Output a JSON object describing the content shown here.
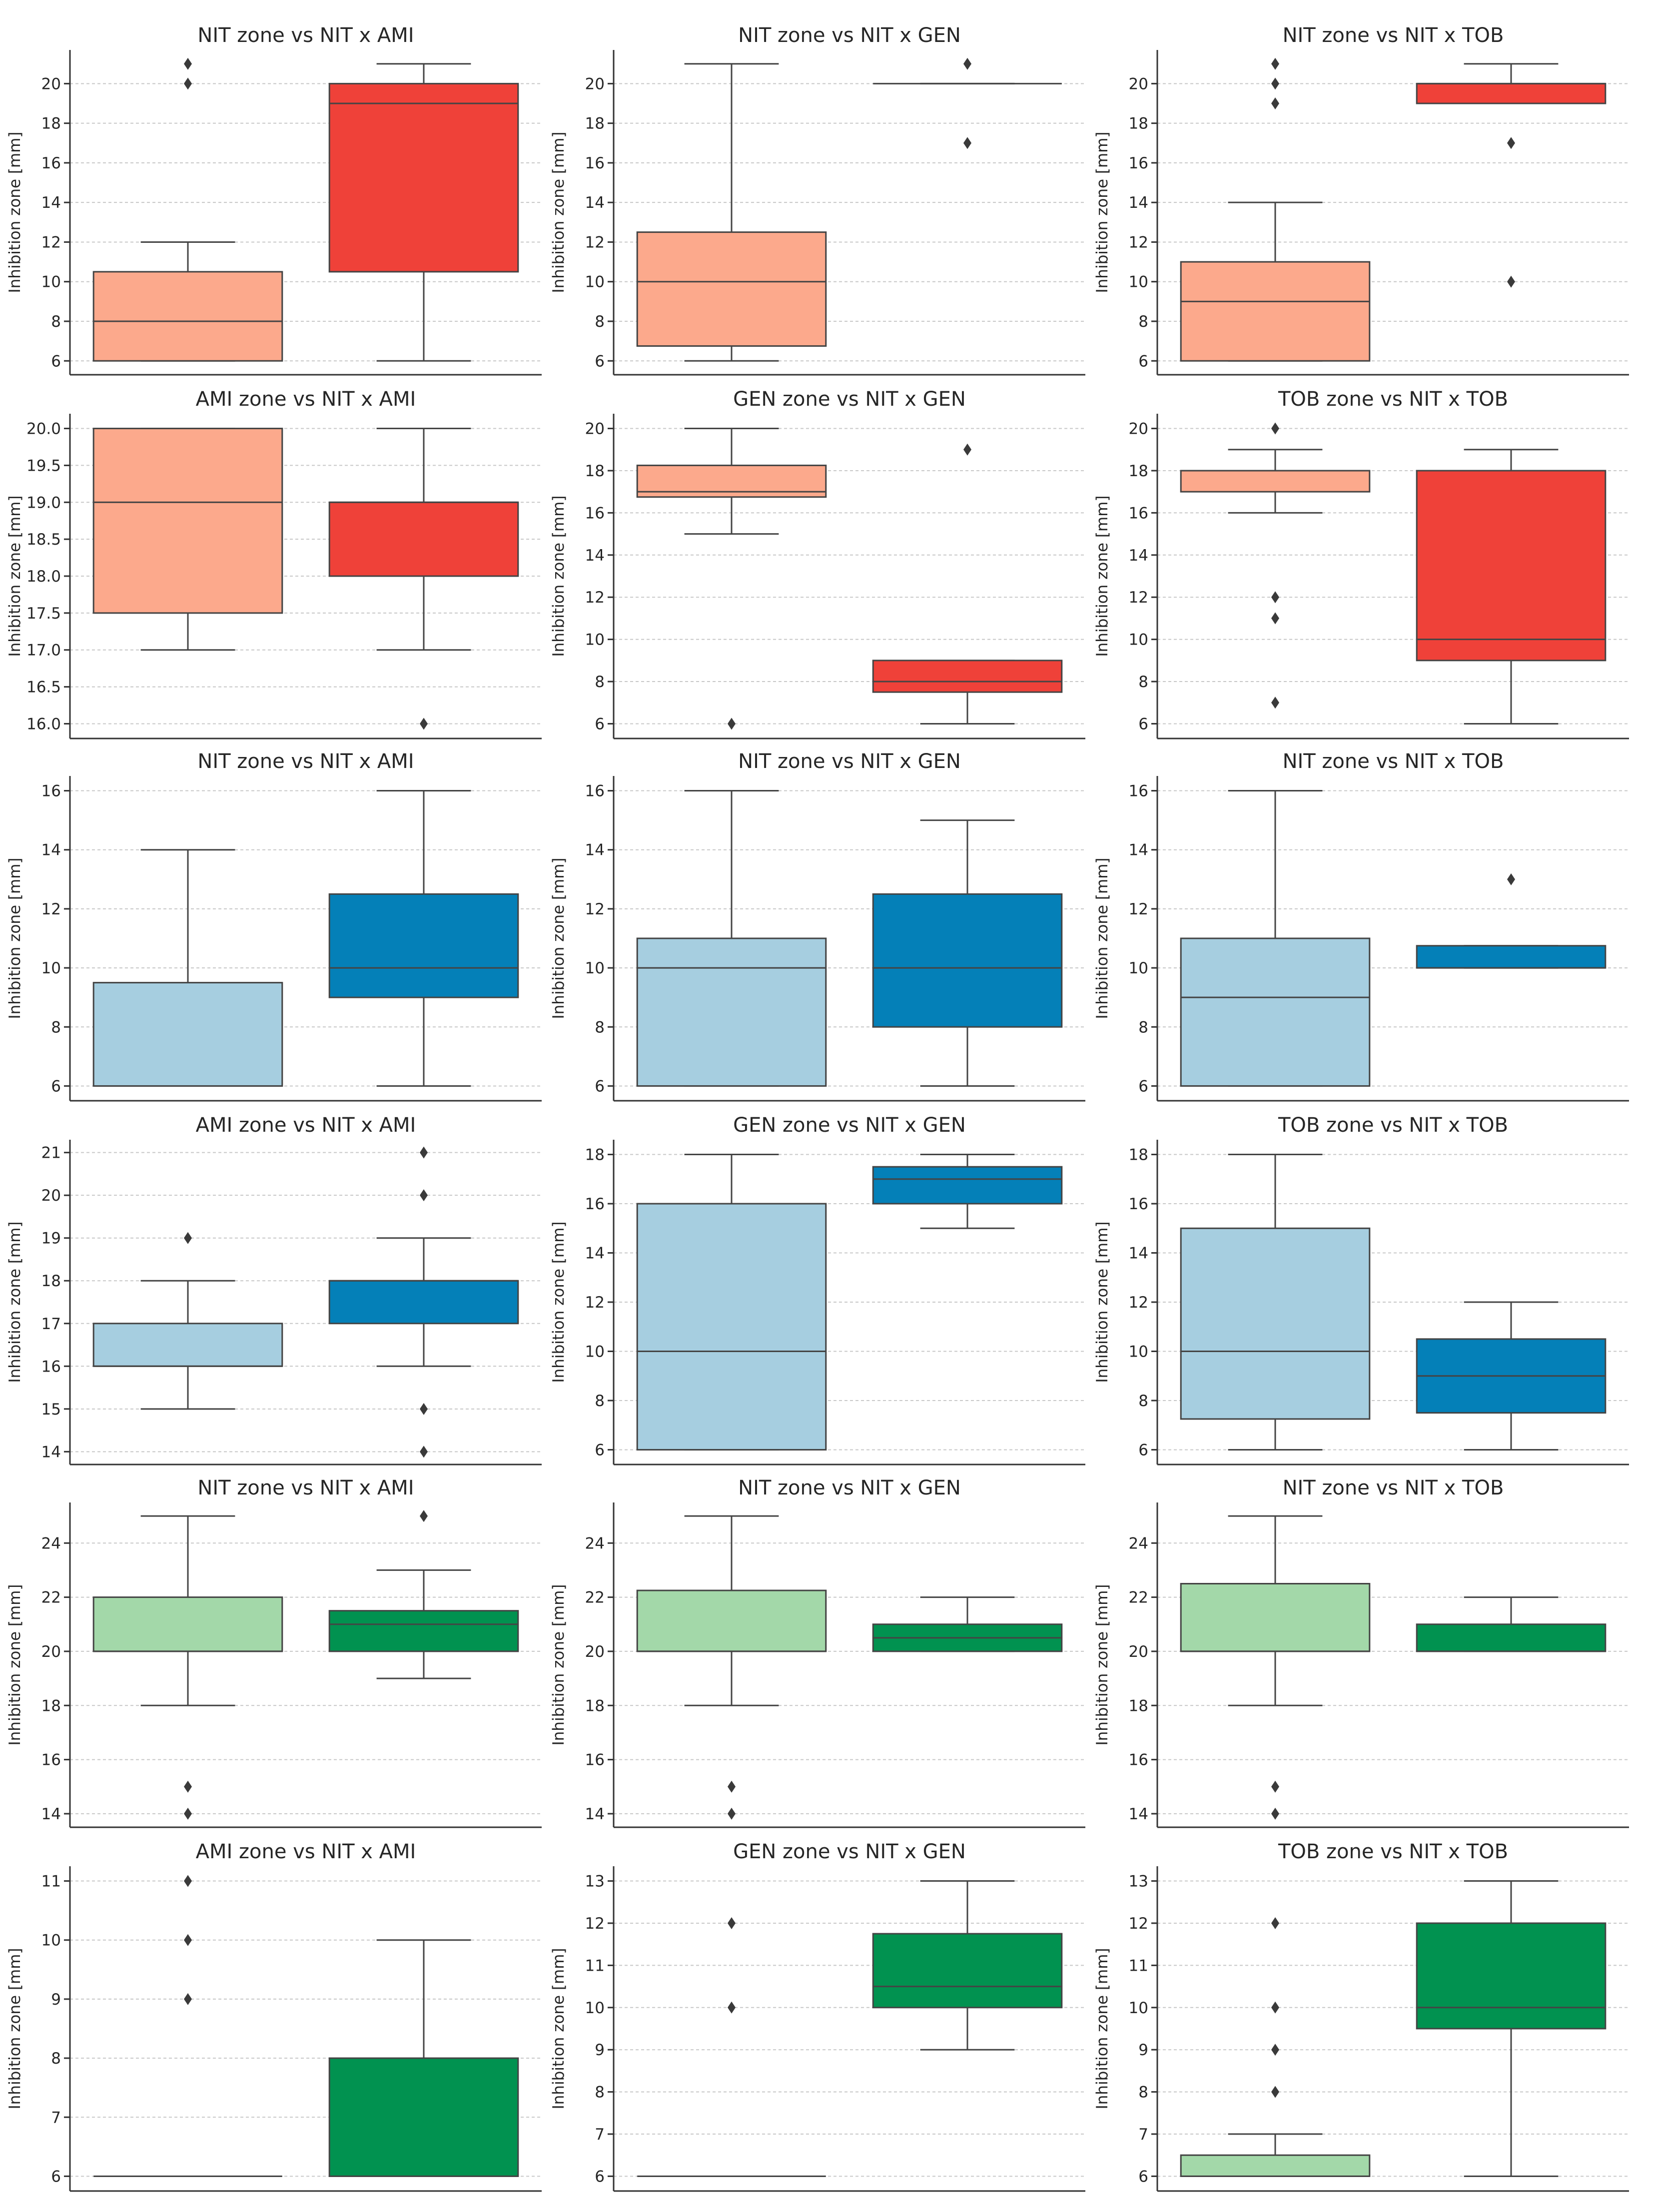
{
  "chart_data": [
    {
      "type": "box",
      "title": "NIT zone vs NIT x AMI",
      "ylabel": "Inhibition zone [mm]",
      "ylim": [
        5.3,
        21.7
      ],
      "ticks": [
        6,
        8,
        10,
        12,
        14,
        16,
        18,
        20
      ],
      "color_single": "#fca98c",
      "color_combo": "#ef4139",
      "boxes": [
        {
          "name": "single",
          "q1": 6,
          "median": 8,
          "q3": 10.5,
          "whislo": 6,
          "whishi": 12,
          "fliers": [
            20,
            21
          ]
        },
        {
          "name": "combo",
          "q1": 10.5,
          "median": 19,
          "q3": 20,
          "whislo": 6,
          "whishi": 21,
          "fliers": []
        }
      ]
    },
    {
      "type": "box",
      "title": "NIT zone vs NIT x GEN",
      "ylabel": "Inhibition zone [mm]",
      "ylim": [
        5.3,
        21.7
      ],
      "ticks": [
        6,
        8,
        10,
        12,
        14,
        16,
        18,
        20
      ],
      "color_single": "#fca98c",
      "color_combo": "#ef4139",
      "boxes": [
        {
          "name": "single",
          "q1": 6.75,
          "median": 10,
          "q3": 12.5,
          "whislo": 6,
          "whishi": 21,
          "fliers": []
        },
        {
          "name": "combo",
          "q1": 20,
          "median": 20,
          "q3": 20,
          "whislo": 20,
          "whishi": 20,
          "fliers": [
            17,
            21
          ]
        }
      ]
    },
    {
      "type": "box",
      "title": "NIT zone vs NIT x TOB",
      "ylabel": "Inhibition zone [mm]",
      "ylim": [
        5.3,
        21.7
      ],
      "ticks": [
        6,
        8,
        10,
        12,
        14,
        16,
        18,
        20
      ],
      "color_single": "#fca98c",
      "color_combo": "#ef4139",
      "boxes": [
        {
          "name": "single",
          "q1": 6,
          "median": 9,
          "q3": 11,
          "whislo": 6,
          "whishi": 14,
          "fliers": [
            19,
            20,
            21
          ]
        },
        {
          "name": "combo",
          "q1": 19,
          "median": 20,
          "q3": 20,
          "whislo": 19,
          "whishi": 21,
          "fliers": [
            10,
            17
          ]
        }
      ]
    },
    {
      "type": "box",
      "title": "AMI zone vs NIT x AMI",
      "ylabel": "Inhibition zone [mm]",
      "ylim": [
        15.8,
        20.2
      ],
      "ticks": [
        16.0,
        16.5,
        17.0,
        17.5,
        18.0,
        18.5,
        19.0,
        19.5,
        20.0
      ],
      "tick_format": "1dp",
      "color_single": "#fca98c",
      "color_combo": "#ef4139",
      "boxes": [
        {
          "name": "single",
          "q1": 17.5,
          "median": 19,
          "q3": 20,
          "whislo": 17,
          "whishi": 20,
          "fliers": []
        },
        {
          "name": "combo",
          "q1": 18,
          "median": 19,
          "q3": 19,
          "whislo": 17,
          "whishi": 20,
          "fliers": [
            16
          ]
        }
      ]
    },
    {
      "type": "box",
      "title": "GEN zone vs NIT x GEN",
      "ylabel": "Inhibition zone [mm]",
      "ylim": [
        5.3,
        20.7
      ],
      "ticks": [
        6,
        8,
        10,
        12,
        14,
        16,
        18,
        20
      ],
      "color_single": "#fca98c",
      "color_combo": "#ef4139",
      "boxes": [
        {
          "name": "single",
          "q1": 16.75,
          "median": 17,
          "q3": 18.25,
          "whislo": 15,
          "whishi": 20,
          "fliers": [
            6
          ]
        },
        {
          "name": "combo",
          "q1": 7.5,
          "median": 8,
          "q3": 9,
          "whislo": 6,
          "whishi": 9,
          "fliers": [
            19
          ]
        }
      ]
    },
    {
      "type": "box",
      "title": "TOB zone vs NIT x TOB",
      "ylabel": "Inhibition zone [mm]",
      "ylim": [
        5.3,
        20.7
      ],
      "ticks": [
        6,
        8,
        10,
        12,
        14,
        16,
        18,
        20
      ],
      "color_single": "#fca98c",
      "color_combo": "#ef4139",
      "boxes": [
        {
          "name": "single",
          "q1": 17,
          "median": 18,
          "q3": 18,
          "whislo": 16,
          "whishi": 19,
          "fliers": [
            7,
            11,
            12,
            20
          ]
        },
        {
          "name": "combo",
          "q1": 9,
          "median": 10,
          "q3": 18,
          "whislo": 6,
          "whishi": 19,
          "fliers": []
        }
      ]
    },
    {
      "type": "box",
      "title": "NIT zone vs NIT x AMI",
      "ylabel": "Inhibition zone [mm]",
      "ylim": [
        5.5,
        16.5
      ],
      "ticks": [
        6,
        8,
        10,
        12,
        14,
        16
      ],
      "color_single": "#a6cee0",
      "color_combo": "#0480b8",
      "boxes": [
        {
          "name": "single",
          "q1": 6,
          "median": 6,
          "q3": 9.5,
          "whislo": 6,
          "whishi": 14,
          "fliers": []
        },
        {
          "name": "combo",
          "q1": 9,
          "median": 10,
          "q3": 12.5,
          "whislo": 6,
          "whishi": 16,
          "fliers": []
        }
      ]
    },
    {
      "type": "box",
      "title": "NIT zone vs NIT x GEN",
      "ylabel": "Inhibition zone [mm]",
      "ylim": [
        5.5,
        16.5
      ],
      "ticks": [
        6,
        8,
        10,
        12,
        14,
        16
      ],
      "color_single": "#a6cee0",
      "color_combo": "#0480b8",
      "boxes": [
        {
          "name": "single",
          "q1": 6,
          "median": 10,
          "q3": 11,
          "whislo": 6,
          "whishi": 16,
          "fliers": []
        },
        {
          "name": "combo",
          "q1": 8,
          "median": 10,
          "q3": 12.5,
          "whislo": 6,
          "whishi": 15,
          "fliers": []
        }
      ]
    },
    {
      "type": "box",
      "title": "NIT zone vs NIT x TOB",
      "ylabel": "Inhibition zone [mm]",
      "ylim": [
        5.5,
        16.5
      ],
      "ticks": [
        6,
        8,
        10,
        12,
        14,
        16
      ],
      "color_single": "#a6cee0",
      "color_combo": "#0480b8",
      "boxes": [
        {
          "name": "single",
          "q1": 6,
          "median": 9,
          "q3": 11,
          "whislo": 6,
          "whishi": 16,
          "fliers": []
        },
        {
          "name": "combo",
          "q1": 10,
          "median": 10,
          "q3": 10.75,
          "whislo": 10,
          "whishi": 10.75,
          "fliers": [
            13
          ]
        }
      ]
    },
    {
      "type": "box",
      "title": "AMI zone vs NIT x AMI",
      "ylabel": "Inhibition zone [mm]",
      "ylim": [
        13.7,
        21.3
      ],
      "ticks": [
        14,
        15,
        16,
        17,
        18,
        19,
        20,
        21
      ],
      "color_single": "#a6cee0",
      "color_combo": "#0480b8",
      "boxes": [
        {
          "name": "single",
          "q1": 16,
          "median": 16,
          "q3": 17,
          "whislo": 15,
          "whishi": 18,
          "fliers": [
            19
          ]
        },
        {
          "name": "combo",
          "q1": 17,
          "median": 18,
          "q3": 18,
          "whislo": 16,
          "whishi": 19,
          "fliers": [
            14,
            15,
            20,
            21
          ]
        }
      ]
    },
    {
      "type": "box",
      "title": "GEN zone vs NIT x GEN",
      "ylabel": "Inhibition zone [mm]",
      "ylim": [
        5.4,
        18.6
      ],
      "ticks": [
        6,
        8,
        10,
        12,
        14,
        16,
        18
      ],
      "color_single": "#a6cee0",
      "color_combo": "#0480b8",
      "boxes": [
        {
          "name": "single",
          "q1": 6,
          "median": 10,
          "q3": 16,
          "whislo": 6,
          "whishi": 18,
          "fliers": []
        },
        {
          "name": "combo",
          "q1": 16,
          "median": 17,
          "q3": 17.5,
          "whislo": 15,
          "whishi": 18,
          "fliers": []
        }
      ]
    },
    {
      "type": "box",
      "title": "TOB zone vs NIT x TOB",
      "ylabel": "Inhibition zone [mm]",
      "ylim": [
        5.4,
        18.6
      ],
      "ticks": [
        6,
        8,
        10,
        12,
        14,
        16,
        18
      ],
      "color_single": "#a6cee0",
      "color_combo": "#0480b8",
      "boxes": [
        {
          "name": "single",
          "q1": 7.25,
          "median": 10,
          "q3": 15,
          "whislo": 6,
          "whishi": 18,
          "fliers": []
        },
        {
          "name": "combo",
          "q1": 7.5,
          "median": 9,
          "q3": 10.5,
          "whislo": 6,
          "whishi": 12,
          "fliers": []
        }
      ]
    },
    {
      "type": "box",
      "title": "NIT zone vs NIT x AMI",
      "ylabel": "Inhibition zone [mm]",
      "ylim": [
        13.5,
        25.5
      ],
      "ticks": [
        14,
        16,
        18,
        20,
        22,
        24
      ],
      "color_single": "#a3d8a9",
      "color_combo": "#019250",
      "boxes": [
        {
          "name": "single",
          "q1": 20,
          "median": 20,
          "q3": 22,
          "whislo": 18,
          "whishi": 25,
          "fliers": [
            14,
            15
          ]
        },
        {
          "name": "combo",
          "q1": 20,
          "median": 21,
          "q3": 21.5,
          "whislo": 19,
          "whishi": 23,
          "fliers": [
            25
          ]
        }
      ]
    },
    {
      "type": "box",
      "title": "NIT zone vs NIT x GEN",
      "ylabel": "Inhibition zone [mm]",
      "ylim": [
        13.5,
        25.5
      ],
      "ticks": [
        14,
        16,
        18,
        20,
        22,
        24
      ],
      "color_single": "#a3d8a9",
      "color_combo": "#019250",
      "boxes": [
        {
          "name": "single",
          "q1": 20,
          "median": 20,
          "q3": 22.25,
          "whislo": 18,
          "whishi": 25,
          "fliers": [
            14,
            15
          ]
        },
        {
          "name": "combo",
          "q1": 20,
          "median": 20.5,
          "q3": 21,
          "whislo": 20,
          "whishi": 22,
          "fliers": []
        }
      ]
    },
    {
      "type": "box",
      "title": "NIT zone vs NIT x TOB",
      "ylabel": "Inhibition zone [mm]",
      "ylim": [
        13.5,
        25.5
      ],
      "ticks": [
        14,
        16,
        18,
        20,
        22,
        24
      ],
      "color_single": "#a3d8a9",
      "color_combo": "#019250",
      "boxes": [
        {
          "name": "single",
          "q1": 20,
          "median": 20,
          "q3": 22.5,
          "whislo": 18,
          "whishi": 25,
          "fliers": [
            14,
            15
          ]
        },
        {
          "name": "combo",
          "q1": 20,
          "median": 20,
          "q3": 21,
          "whislo": 20,
          "whishi": 22,
          "fliers": []
        }
      ]
    },
    {
      "type": "box",
      "title": "AMI zone vs NIT x AMI",
      "ylabel": "Inhibition zone [mm]",
      "ylim": [
        5.75,
        11.25
      ],
      "ticks": [
        6,
        7,
        8,
        9,
        10,
        11
      ],
      "color_single": "#a3d8a9",
      "color_combo": "#019250",
      "boxes": [
        {
          "name": "single",
          "q1": 6,
          "median": 6,
          "q3": 6,
          "whislo": 6,
          "whishi": 6,
          "fliers": [
            9,
            10,
            11
          ]
        },
        {
          "name": "combo",
          "q1": 6,
          "median": 6,
          "q3": 8,
          "whislo": 6,
          "whishi": 10,
          "fliers": []
        }
      ]
    },
    {
      "type": "box",
      "title": "GEN zone vs NIT x GEN",
      "ylabel": "Inhibition zone [mm]",
      "ylim": [
        5.65,
        13.35
      ],
      "ticks": [
        6,
        7,
        8,
        9,
        10,
        11,
        12,
        13
      ],
      "color_single": "#a3d8a9",
      "color_combo": "#019250",
      "boxes": [
        {
          "name": "single",
          "q1": 6,
          "median": 6,
          "q3": 6,
          "whislo": 6,
          "whishi": 6,
          "fliers": [
            10,
            12
          ]
        },
        {
          "name": "combo",
          "q1": 10,
          "median": 10.5,
          "q3": 11.75,
          "whislo": 9,
          "whishi": 13,
          "fliers": []
        }
      ]
    },
    {
      "type": "box",
      "title": "TOB zone vs NIT x TOB",
      "ylabel": "Inhibition zone [mm]",
      "ylim": [
        5.65,
        13.35
      ],
      "ticks": [
        6,
        7,
        8,
        9,
        10,
        11,
        12,
        13
      ],
      "color_single": "#a3d8a9",
      "color_combo": "#019250",
      "boxes": [
        {
          "name": "single",
          "q1": 6,
          "median": 6,
          "q3": 6.5,
          "whislo": 6,
          "whishi": 7,
          "fliers": [
            8,
            9,
            10,
            12
          ]
        },
        {
          "name": "combo",
          "q1": 9.5,
          "median": 10,
          "q3": 12,
          "whislo": 6,
          "whishi": 13,
          "fliers": []
        }
      ]
    }
  ]
}
